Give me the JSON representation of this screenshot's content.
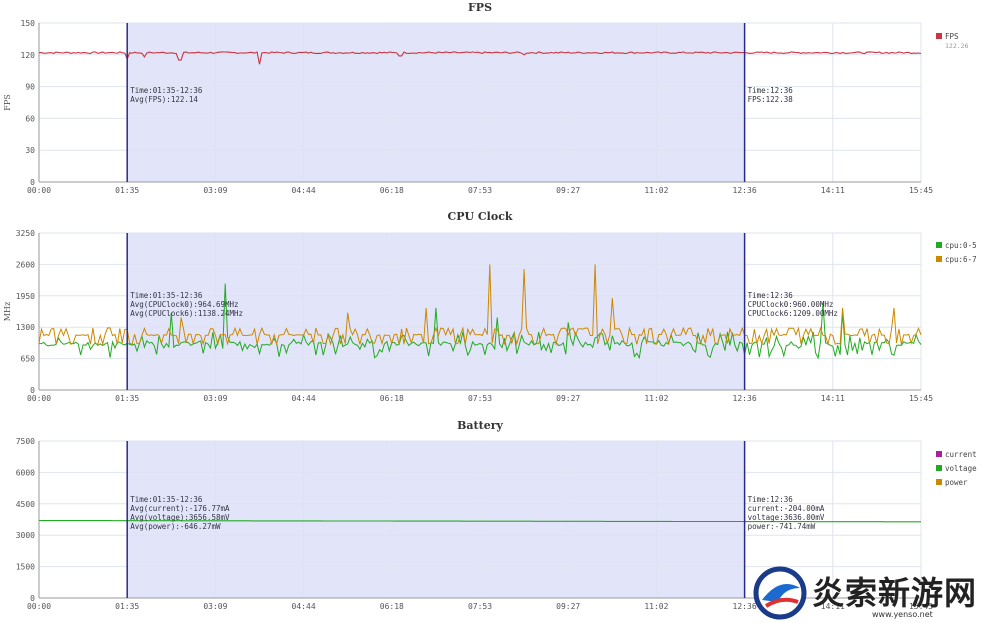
{
  "x_axis_ticks": [
    "00:00",
    "01:35",
    "03:09",
    "04:44",
    "06:18",
    "07:53",
    "09:27",
    "11:02",
    "12:36",
    "14:11",
    "15:45"
  ],
  "colors": {
    "fps": "#cc3344",
    "cpu0_5": "#22aa22",
    "cpu6_7": "#cc8800",
    "current": "#aa2299",
    "voltage": "#22aa22",
    "power": "#cc8800",
    "selection_fill": "#dde0f8",
    "marker": "#2a2a8a",
    "grid": "#dde4ee"
  },
  "chart_data": [
    {
      "type": "line",
      "title": "FPS",
      "ylabel": "FPS",
      "ylim": [
        0,
        150
      ],
      "yticks": [
        "0",
        "30",
        "60",
        "90",
        "120",
        "150"
      ],
      "legend": [
        {
          "name": "FPS",
          "sub": "122.26",
          "color": "#cc3344"
        }
      ],
      "selection": {
        "start": "01:35",
        "end": "12:36"
      },
      "annotation_left": [
        "Time:01:35-12:36",
        "Avg(FPS):122.14"
      ],
      "annotation_right": [
        "Time:12:36",
        "FPS:122.38"
      ],
      "series": [
        {
          "name": "FPS",
          "baseline": 122,
          "dips": [
            [
              0.1,
              116
            ],
            [
              0.12,
              118
            ],
            [
              0.16,
              115
            ],
            [
              0.25,
              111
            ],
            [
              0.41,
              119
            ],
            [
              0.55,
              120
            ]
          ]
        }
      ]
    },
    {
      "type": "line",
      "title": "CPU Clock",
      "ylabel": "MHz",
      "ylim": [
        0,
        3250
      ],
      "yticks": [
        "0",
        "650",
        "1300",
        "1950",
        "2600",
        "3250"
      ],
      "legend": [
        {
          "name": "cpu:0-5",
          "color": "#22aa22"
        },
        {
          "name": "cpu:6-7",
          "color": "#cc8800"
        }
      ],
      "selection": {
        "start": "01:35",
        "end": "12:36"
      },
      "annotation_left": [
        "Time:01:35-12:36",
        "Avg(CPUClock0):964.69MHz",
        "Avg(CPUClock6):1138.24MHz"
      ],
      "annotation_right": [
        "Time:12:36",
        "CPUClock0:960.00MHz",
        "CPUClock6:1209.00MHz"
      ],
      "series": [
        {
          "name": "cpu:0-5",
          "baseline": 960,
          "spikes": [
            [
              0.21,
              2200
            ],
            [
              0.15,
              1600
            ],
            [
              0.45,
              1700
            ],
            [
              0.52,
              1500
            ],
            [
              0.6,
              1400
            ],
            [
              0.89,
              1800
            ],
            [
              0.91,
              1600
            ]
          ]
        },
        {
          "name": "cpu:6-7",
          "baseline": 1140,
          "spikes": [
            [
              0.51,
              2600
            ],
            [
              0.55,
              2500
            ],
            [
              0.63,
              2600
            ],
            [
              0.65,
              1900
            ],
            [
              0.44,
              1700
            ],
            [
              0.16,
              1500
            ],
            [
              0.35,
              1600
            ],
            [
              0.91,
              1700
            ],
            [
              0.97,
              1700
            ]
          ]
        }
      ]
    },
    {
      "type": "line",
      "title": "Battery",
      "ylabel": "",
      "ylim": [
        0,
        7500
      ],
      "yticks": [
        "0",
        "1500",
        "3000",
        "4500",
        "6000",
        "7500"
      ],
      "legend": [
        {
          "name": "current",
          "color": "#aa2299"
        },
        {
          "name": "voltage",
          "color": "#22aa22"
        },
        {
          "name": "power",
          "color": "#cc8800"
        }
      ],
      "selection": {
        "start": "01:35",
        "end": "12:36"
      },
      "annotation_left": [
        "Time:01:35-12:36",
        "Avg(current):-176.77mA",
        "Avg(voltage):3656.58mV",
        "Avg(power):-646.27mW"
      ],
      "annotation_right": [
        "Time:12:36",
        "current:-204.00mA",
        "voltage:3636.00mV",
        "power:-741.74mW"
      ],
      "series": [
        {
          "name": "voltage",
          "values_start": 3700,
          "values_end": 3640
        }
      ]
    }
  ],
  "watermark": {
    "text": "炎索新游网",
    "url": "www.yenso.net"
  }
}
